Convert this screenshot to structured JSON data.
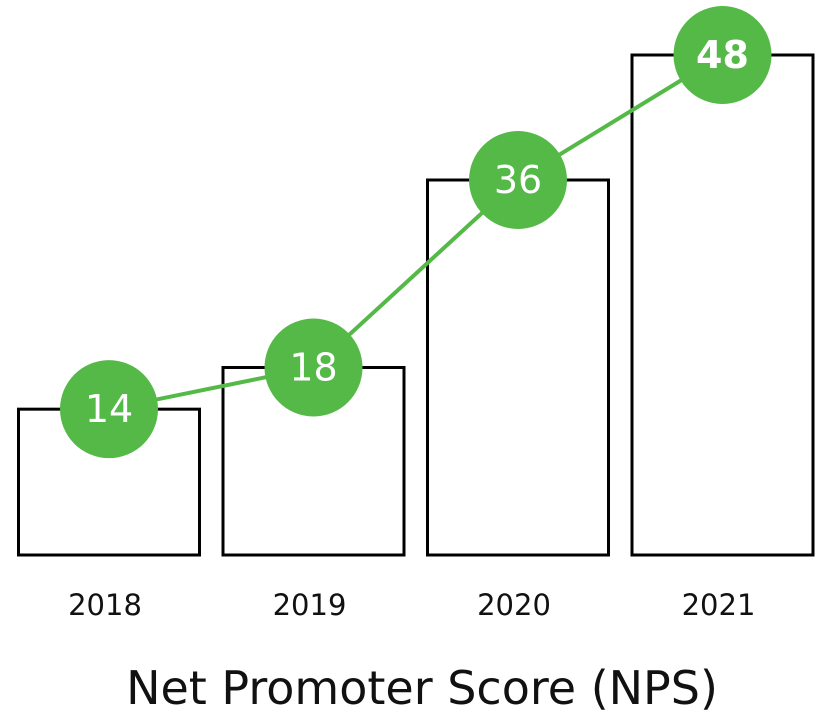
{
  "chart_data": {
    "type": "bar",
    "title": "Net Promoter Score (NPS)",
    "categories": [
      "2018",
      "2019",
      "2020",
      "2021"
    ],
    "values": [
      14,
      18,
      36,
      48
    ],
    "color": "#ffffff",
    "edge_color": "#000000",
    "line_overlay": true,
    "line_color": "#55b948",
    "label_color": "#ffffff"
  }
}
